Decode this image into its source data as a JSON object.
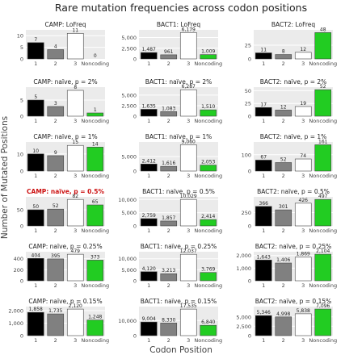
{
  "figure": {
    "title": "Rare mutation frequencies across codon positions",
    "xlabel": "Codon Position",
    "ylabel": "Number of Mutated Positions"
  },
  "colors": {
    "panel_bg": "#ebebeb",
    "grid": "#ffffff",
    "highlight_title": "#cc1111",
    "bar_fills": [
      "#000000",
      "#808080",
      "#ffffff",
      "#22cc22"
    ],
    "bar_stroke": "#444444"
  },
  "chart_data": [
    {
      "type": "bar",
      "title": "CAMP: LoFreq",
      "categories": [
        "1",
        "2",
        "3",
        "Noncoding"
      ],
      "values": [
        7,
        4,
        11,
        0
      ],
      "value_labels": [
        "7",
        "4",
        "11",
        "0"
      ],
      "yticks": [
        0,
        5,
        10
      ],
      "ylim": [
        0,
        12.5
      ]
    },
    {
      "type": "bar",
      "title": "BACT1: LoFreq",
      "categories": [
        "1",
        "2",
        "3",
        "Noncoding"
      ],
      "values": [
        1487,
        961,
        6179,
        1009
      ],
      "value_labels": [
        "1,487",
        "961",
        "6,179",
        "1,009"
      ],
      "yticks": [
        0,
        2500,
        5000
      ],
      "ytick_labels": [
        "0",
        "2,500",
        "5,000"
      ],
      "ylim": [
        0,
        6800
      ]
    },
    {
      "type": "bar",
      "title": "BACT2: LoFreq",
      "categories": [
        "1",
        "2",
        "3",
        "Noncoding"
      ],
      "values": [
        11,
        8,
        12,
        48
      ],
      "value_labels": [
        "11",
        "8",
        "12",
        "48"
      ],
      "yticks": [
        0,
        25
      ],
      "ylim": [
        0,
        53
      ]
    },
    {
      "type": "bar",
      "title": "CAMP: naïve, p = 2%",
      "categories": [
        "1",
        "2",
        "3",
        "Noncoding"
      ],
      "values": [
        5,
        3,
        8,
        1
      ],
      "value_labels": [
        "5",
        "3",
        "8",
        "1"
      ],
      "yticks": [
        0,
        5
      ],
      "ylim": [
        0,
        9
      ]
    },
    {
      "type": "bar",
      "title": "BACT1: naïve, p = 2%",
      "categories": [
        "1",
        "2",
        "3",
        "Noncoding"
      ],
      "values": [
        1635,
        1083,
        6287,
        1510
      ],
      "value_labels": [
        "1,635",
        "1,083",
        "6,287",
        "1,510"
      ],
      "yticks": [
        0,
        2500,
        5000
      ],
      "ytick_labels": [
        "0",
        "2,500",
        "5,000"
      ],
      "ylim": [
        0,
        6900
      ]
    },
    {
      "type": "bar",
      "title": "BACT2: naïve, p = 2%",
      "categories": [
        "1",
        "2",
        "3",
        "Noncoding"
      ],
      "values": [
        17,
        12,
        19,
        52
      ],
      "value_labels": [
        "17",
        "12",
        "19",
        "52"
      ],
      "yticks": [
        0,
        25,
        50
      ],
      "ylim": [
        0,
        57
      ]
    },
    {
      "type": "bar",
      "title": "CAMP: naïve, p = 1%",
      "categories": [
        "1",
        "2",
        "3",
        "Noncoding"
      ],
      "values": [
        10,
        9,
        15,
        14
      ],
      "value_labels": [
        "10",
        "9",
        "15",
        "14"
      ],
      "yticks": [
        0,
        10
      ],
      "ylim": [
        0,
        17
      ]
    },
    {
      "type": "bar",
      "title": "BACT1: naïve, p = 1%",
      "categories": [
        "1",
        "2",
        "3",
        "Noncoding"
      ],
      "values": [
        2412,
        1616,
        9060,
        2053
      ],
      "value_labels": [
        "2,412",
        "1,616",
        "9,060",
        "2,053"
      ],
      "yticks": [
        0,
        5000
      ],
      "ytick_labels": [
        "0",
        "5,000"
      ],
      "ylim": [
        0,
        10000
      ]
    },
    {
      "type": "bar",
      "title": "BACT2: naïve, p = 1%",
      "categories": [
        "1",
        "2",
        "3",
        "Noncoding"
      ],
      "values": [
        67,
        52,
        74,
        161
      ],
      "value_labels": [
        "67",
        "52",
        "74",
        "161"
      ],
      "yticks": [
        0,
        100
      ],
      "ylim": [
        0,
        178
      ]
    },
    {
      "type": "bar",
      "title": "CAMP: naïve, p = 0.5%",
      "highlight": true,
      "categories": [
        "1",
        "2",
        "3",
        "Noncoding"
      ],
      "values": [
        50,
        52,
        82,
        65
      ],
      "value_labels": [
        "50",
        "52",
        "82",
        "65"
      ],
      "yticks": [
        0,
        50
      ],
      "ylim": [
        0,
        90
      ]
    },
    {
      "type": "bar",
      "title": "BACT1: naïve, p = 0.5%",
      "categories": [
        "1",
        "2",
        "3",
        "Noncoding"
      ],
      "values": [
        2759,
        1857,
        10029,
        2414
      ],
      "value_labels": [
        "2,759",
        "1,857",
        "10,029",
        "2,414"
      ],
      "yticks": [
        0,
        5000,
        10000
      ],
      "ytick_labels": [
        "0",
        "5,000",
        "10,000"
      ],
      "ylim": [
        0,
        11000
      ]
    },
    {
      "type": "bar",
      "title": "BACT2: naïve, p = 0.5%",
      "categories": [
        "1",
        "2",
        "3",
        "Noncoding"
      ],
      "values": [
        366,
        301,
        426,
        497
      ],
      "value_labels": [
        "366",
        "301",
        "426",
        "497"
      ],
      "yticks": [
        0,
        250
      ],
      "ylim": [
        0,
        545
      ]
    },
    {
      "type": "bar",
      "title": "CAMP: naïve, p = 0.25%",
      "categories": [
        "1",
        "2",
        "3",
        "Noncoding"
      ],
      "values": [
        404,
        395,
        479,
        373
      ],
      "value_labels": [
        "404",
        "395",
        "479",
        "373"
      ],
      "yticks": [
        0,
        200,
        400
      ],
      "ylim": [
        0,
        525
      ]
    },
    {
      "type": "bar",
      "title": "BACT1: naïve, p = 0.25%",
      "categories": [
        "1",
        "2",
        "3",
        "Noncoding"
      ],
      "values": [
        4120,
        3213,
        12037,
        3769
      ],
      "value_labels": [
        "4,120",
        "3,213",
        "12,037",
        "3,769"
      ],
      "yticks": [
        0,
        5000,
        10000
      ],
      "ytick_labels": [
        "0",
        "5,000",
        "10,000"
      ],
      "ylim": [
        0,
        13200
      ]
    },
    {
      "type": "bar",
      "title": "BACT2: naïve, p = 0.25%",
      "categories": [
        "1",
        "2",
        "3",
        "Noncoding"
      ],
      "values": [
        1643,
        1406,
        1869,
        2104
      ],
      "value_labels": [
        "1,643",
        "1,406",
        "1,869",
        "2,104"
      ],
      "yticks": [
        0,
        1000,
        2000
      ],
      "ytick_labels": [
        "0",
        "1,000",
        "2,000"
      ],
      "ylim": [
        0,
        2300
      ]
    },
    {
      "type": "bar",
      "title": "CAMP: naïve, p = 0.15%",
      "categories": [
        "1",
        "2",
        "3",
        "Noncoding"
      ],
      "values": [
        1858,
        1735,
        2120,
        1248
      ],
      "value_labels": [
        "1,858",
        "1,735",
        "2,120",
        "1,248"
      ],
      "yticks": [
        0,
        1000,
        2000
      ],
      "ytick_labels": [
        "0",
        "1,000",
        "2,000"
      ],
      "ylim": [
        0,
        2320
      ]
    },
    {
      "type": "bar",
      "title": "BACT1: naïve, p = 0.15%",
      "categories": [
        "1",
        "2",
        "3",
        "Noncoding"
      ],
      "values": [
        9004,
        8330,
        17535,
        6840
      ],
      "value_labels": [
        "9,004",
        "8,330",
        "17,535",
        "6,840"
      ],
      "yticks": [
        0,
        10000
      ],
      "ytick_labels": [
        "0",
        "10,000"
      ],
      "ylim": [
        0,
        19200
      ]
    },
    {
      "type": "bar",
      "title": "BACT2: naïve, p = 0.15%",
      "categories": [
        "1",
        "2",
        "3",
        "Noncoding"
      ],
      "values": [
        5346,
        4998,
        5838,
        7096
      ],
      "value_labels": [
        "5,346",
        "4,998",
        "5,838",
        "7,096"
      ],
      "yticks": [
        0,
        2500,
        5000
      ],
      "ytick_labels": [
        "0",
        "2,500",
        "5,000"
      ],
      "ylim": [
        0,
        7750
      ]
    }
  ]
}
